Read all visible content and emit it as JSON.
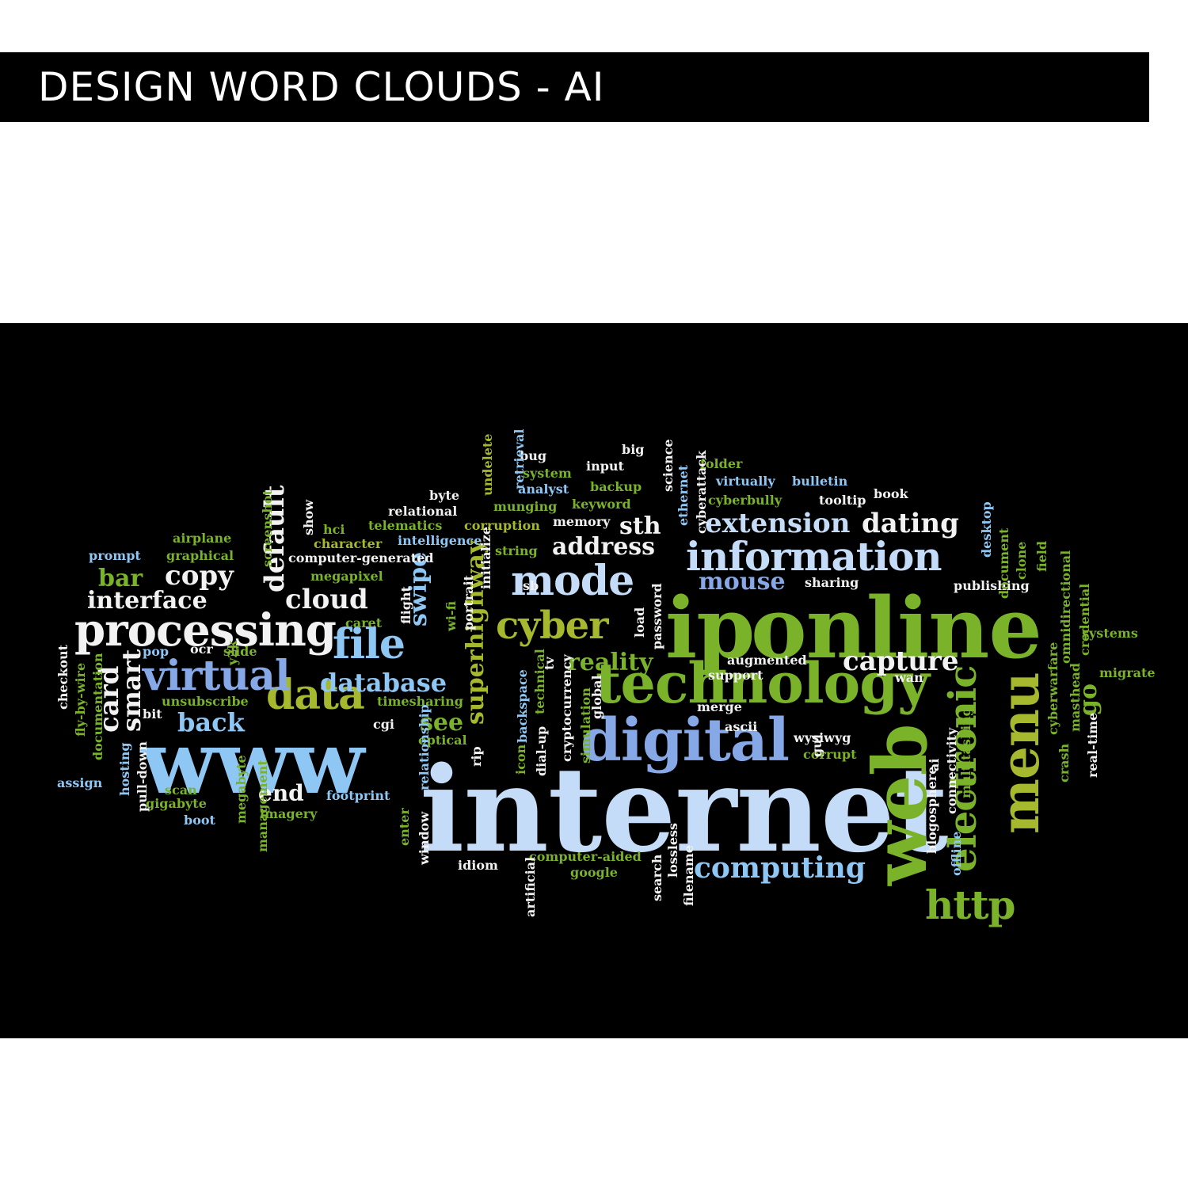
{
  "header": {
    "title": "DESIGN WORD CLOUDS - AI"
  },
  "palette": {
    "white": "#f2f2f2",
    "light_blue": "#8ec6f4",
    "pale_blue": "#c4dcf7",
    "mid_blue": "#86a8e6",
    "green": "#7ab22a",
    "olive": "#a6b82e",
    "dark_green": "#5b9a24"
  },
  "cloud": {
    "words": [
      {
        "t": "internet",
        "c": "pale_blue"
      },
      {
        "t": "online",
        "c": "green"
      },
      {
        "t": "ip",
        "c": "green"
      },
      {
        "t": "technology",
        "c": "green"
      },
      {
        "t": "www",
        "c": "light_blue"
      },
      {
        "t": "digital",
        "c": "mid_blue"
      },
      {
        "t": "web",
        "c": "green"
      },
      {
        "t": "information",
        "c": "pale_blue"
      },
      {
        "t": "menu",
        "c": "olive"
      },
      {
        "t": "electronic",
        "c": "green"
      },
      {
        "t": "processing",
        "c": "white"
      },
      {
        "t": "mode",
        "c": "pale_blue"
      },
      {
        "t": "data",
        "c": "olive"
      },
      {
        "t": "cyber",
        "c": "olive"
      },
      {
        "t": "virtual",
        "c": "mid_blue"
      },
      {
        "t": "file",
        "c": "light_blue"
      },
      {
        "t": "http",
        "c": "green"
      },
      {
        "t": "capture",
        "c": "white"
      },
      {
        "t": "computing",
        "c": "light_blue"
      },
      {
        "t": "database",
        "c": "light_blue"
      },
      {
        "t": "extension",
        "c": "pale_blue"
      },
      {
        "t": "dating",
        "c": "white"
      },
      {
        "t": "address",
        "c": "white"
      },
      {
        "t": "superhighway",
        "c": "olive"
      },
      {
        "t": "swipe",
        "c": "light_blue"
      },
      {
        "t": "reality",
        "c": "green"
      },
      {
        "t": "cloud",
        "c": "white"
      },
      {
        "t": "interface",
        "c": "white"
      },
      {
        "t": "copy",
        "c": "white"
      },
      {
        "t": "default",
        "c": "white"
      },
      {
        "t": "back",
        "c": "light_blue"
      },
      {
        "t": "end",
        "c": "white"
      },
      {
        "t": "mouse",
        "c": "mid_blue"
      },
      {
        "t": "bar",
        "c": "green"
      },
      {
        "t": "card",
        "c": "white"
      },
      {
        "t": "smart",
        "c": "white"
      },
      {
        "t": "sth",
        "c": "white"
      },
      {
        "t": "see",
        "c": "green"
      },
      {
        "t": "go",
        "c": "green"
      },
      {
        "t": "folder",
        "c": "green"
      },
      {
        "t": "bulletin",
        "c": "light_blue"
      },
      {
        "t": "virtually",
        "c": "light_blue"
      },
      {
        "t": "cyberbully",
        "c": "green"
      },
      {
        "t": "tooltip",
        "c": "white"
      },
      {
        "t": "book",
        "c": "white"
      },
      {
        "t": "bug",
        "c": "white"
      },
      {
        "t": "input",
        "c": "white"
      },
      {
        "t": "big",
        "c": "white"
      },
      {
        "t": "system",
        "c": "green"
      },
      {
        "t": "analyst",
        "c": "light_blue"
      },
      {
        "t": "backup",
        "c": "green"
      },
      {
        "t": "byte",
        "c": "white"
      },
      {
        "t": "keyword",
        "c": "green"
      },
      {
        "t": "munging",
        "c": "green"
      },
      {
        "t": "relational",
        "c": "white"
      },
      {
        "t": "memory",
        "c": "white"
      },
      {
        "t": "corruption",
        "c": "olive"
      },
      {
        "t": "telematics",
        "c": "green"
      },
      {
        "t": "hci",
        "c": "green"
      },
      {
        "t": "character",
        "c": "olive"
      },
      {
        "t": "intelligence",
        "c": "light_blue"
      },
      {
        "t": "airplane",
        "c": "green"
      },
      {
        "t": "graphical",
        "c": "green"
      },
      {
        "t": "prompt",
        "c": "light_blue"
      },
      {
        "t": "computer-generated",
        "c": "white"
      },
      {
        "t": "string",
        "c": "green"
      },
      {
        "t": "megapixel",
        "c": "green"
      },
      {
        "t": "wi-fi",
        "c": "green"
      },
      {
        "t": "caret",
        "c": "green"
      },
      {
        "t": "pop",
        "c": "light_blue"
      },
      {
        "t": "ocr",
        "c": "white"
      },
      {
        "t": "slide",
        "c": "green"
      },
      {
        "t": "unsubscribe",
        "c": "green"
      },
      {
        "t": "timesharing",
        "c": "green"
      },
      {
        "t": "bit",
        "c": "white"
      },
      {
        "t": "cgi",
        "c": "white"
      },
      {
        "t": "optical",
        "c": "green"
      },
      {
        "t": "scan",
        "c": "green"
      },
      {
        "t": "gigabyte",
        "c": "green"
      },
      {
        "t": "boot",
        "c": "light_blue"
      },
      {
        "t": "imagery",
        "c": "green"
      },
      {
        "t": "footprint",
        "c": "light_blue"
      },
      {
        "t": "assign",
        "c": "light_blue"
      },
      {
        "t": "sb",
        "c": "white"
      },
      {
        "t": "load",
        "c": "white"
      },
      {
        "t": "password",
        "c": "white"
      },
      {
        "t": "sharing",
        "c": "white"
      },
      {
        "t": "publishing",
        "c": "white"
      },
      {
        "t": "augmented",
        "c": "white"
      },
      {
        "t": "support",
        "c": "white"
      },
      {
        "t": "wan",
        "c": "white"
      },
      {
        "t": "merge",
        "c": "white"
      },
      {
        "t": "ascii",
        "c": "white"
      },
      {
        "t": "wysiwyg",
        "c": "white"
      },
      {
        "t": "corrupt",
        "c": "green"
      },
      {
        "t": "idiom",
        "c": "white"
      },
      {
        "t": "computer-aided",
        "c": "green"
      },
      {
        "t": "google",
        "c": "green"
      },
      {
        "t": "systems",
        "c": "green"
      },
      {
        "t": "migrate",
        "c": "green"
      },
      {
        "t": "screenshot",
        "c": "green"
      },
      {
        "t": "show",
        "c": "white"
      },
      {
        "t": "undelete",
        "c": "olive"
      },
      {
        "t": "retrieval",
        "c": "light_blue"
      },
      {
        "t": "science",
        "c": "white"
      },
      {
        "t": "ethernet",
        "c": "light_blue"
      },
      {
        "t": "cyberattack",
        "c": "white"
      },
      {
        "t": "initialize",
        "c": "white"
      },
      {
        "t": "portrait",
        "c": "white"
      },
      {
        "t": "flight",
        "c": "white"
      },
      {
        "t": "y2k",
        "c": "green"
      },
      {
        "t": "checkout",
        "c": "white"
      },
      {
        "t": "fly-by-wire",
        "c": "green"
      },
      {
        "t": "documentation",
        "c": "green"
      },
      {
        "t": "hosting",
        "c": "light_blue"
      },
      {
        "t": "pull-down",
        "c": "white"
      },
      {
        "t": "megabyte",
        "c": "green"
      },
      {
        "t": "management",
        "c": "green"
      },
      {
        "t": "relationship",
        "c": "light_blue"
      },
      {
        "t": "enter",
        "c": "green"
      },
      {
        "t": "window",
        "c": "white"
      },
      {
        "t": "rip",
        "c": "white"
      },
      {
        "t": "icon",
        "c": "green"
      },
      {
        "t": "backspace",
        "c": "light_blue"
      },
      {
        "t": "technical",
        "c": "green"
      },
      {
        "t": "dial-up",
        "c": "white"
      },
      {
        "t": "tv",
        "c": "white"
      },
      {
        "t": "cryptocurrency",
        "c": "white"
      },
      {
        "t": "simulation",
        "c": "green"
      },
      {
        "t": "global",
        "c": "white"
      },
      {
        "t": "artificial",
        "c": "white"
      },
      {
        "t": "lossless",
        "c": "white"
      },
      {
        "t": "search",
        "c": "white"
      },
      {
        "t": "filename",
        "c": "white"
      },
      {
        "t": "gui",
        "c": "white"
      },
      {
        "t": "blogosphere",
        "c": "white"
      },
      {
        "t": "ai",
        "c": "white"
      },
      {
        "t": "connectivity",
        "c": "white"
      },
      {
        "t": "multitasking",
        "c": "green"
      },
      {
        "t": "offline",
        "c": "light_blue"
      },
      {
        "t": "desktop",
        "c": "light_blue"
      },
      {
        "t": "document",
        "c": "green"
      },
      {
        "t": "clone",
        "c": "green"
      },
      {
        "t": "field",
        "c": "green"
      },
      {
        "t": "omnidirectional",
        "c": "green"
      },
      {
        "t": "credential",
        "c": "green"
      },
      {
        "t": "cyberwarfare",
        "c": "green"
      },
      {
        "t": "masthead",
        "c": "green"
      },
      {
        "t": "crash",
        "c": "green"
      },
      {
        "t": "real-time",
        "c": "white"
      }
    ]
  }
}
